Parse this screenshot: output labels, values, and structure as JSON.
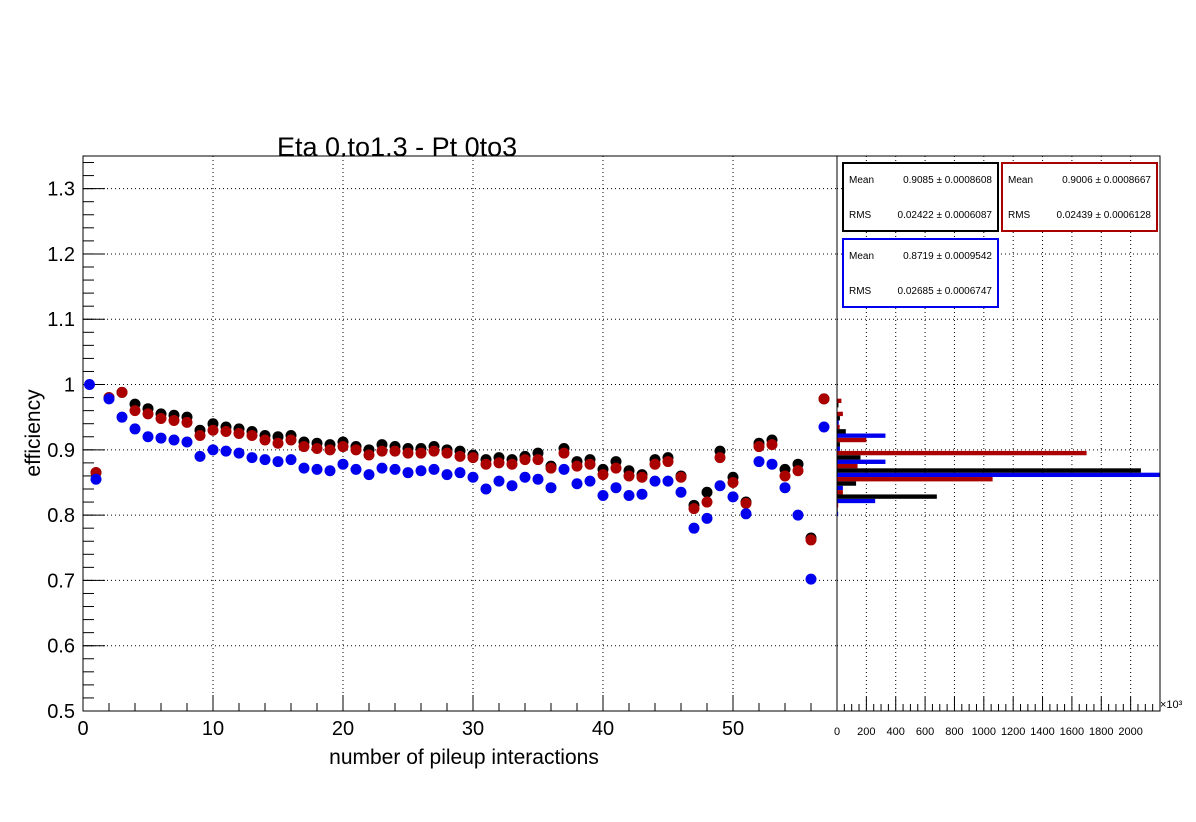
{
  "chart_data": [
    {
      "type": "scatter",
      "title": "Eta 0.to1.3 - Pt 0to3",
      "xlabel": "number of pileup interactions",
      "ylabel": "efficiency",
      "xlim": [
        0,
        58
      ],
      "ylim": [
        0.5,
        1.35
      ],
      "x_ticks": [
        0,
        10,
        20,
        30,
        40,
        50
      ],
      "y_ticks": [
        0.5,
        0.6,
        0.7,
        0.8,
        0.9,
        1.0,
        1.1,
        1.2,
        1.3
      ],
      "x_tick_labels": [
        "0",
        "10",
        "20",
        "30",
        "40",
        "50"
      ],
      "y_tick_labels": [
        "0.5",
        "0.6",
        "0.7",
        "0.8",
        "0.9",
        "1",
        "1.1",
        "1.2",
        "1.3"
      ],
      "grid": true,
      "series": [
        {
          "color": "#000000",
          "x": [
            1,
            2,
            3,
            4,
            5,
            6,
            7,
            8,
            9,
            10,
            11,
            12,
            13,
            14,
            15,
            16,
            17,
            18,
            19,
            20,
            21,
            22,
            23,
            24,
            25,
            26,
            27,
            28,
            29,
            30,
            31,
            32,
            33,
            34,
            35,
            36,
            37,
            38,
            39,
            40,
            41,
            42,
            43,
            44,
            45,
            46,
            47,
            48,
            49,
            50,
            51,
            52,
            53,
            54,
            55,
            56,
            57
          ],
          "values": [
            0.865,
            0.98,
            0.988,
            0.97,
            0.963,
            0.955,
            0.953,
            0.95,
            0.93,
            0.94,
            0.935,
            0.932,
            0.928,
            0.922,
            0.92,
            0.922,
            0.912,
            0.91,
            0.908,
            0.912,
            0.905,
            0.9,
            0.908,
            0.905,
            0.902,
            0.902,
            0.905,
            0.9,
            0.898,
            0.892,
            0.885,
            0.888,
            0.885,
            0.89,
            0.895,
            0.875,
            0.902,
            0.882,
            0.885,
            0.87,
            0.882,
            0.868,
            0.862,
            0.885,
            0.888,
            0.86,
            0.815,
            0.835,
            0.898,
            0.858,
            0.82,
            0.91,
            0.915,
            0.87,
            0.878,
            0.765,
            0.978
          ]
        },
        {
          "color": "#aa0000",
          "x": [
            1,
            2,
            3,
            4,
            5,
            6,
            7,
            8,
            9,
            10,
            11,
            12,
            13,
            14,
            15,
            16,
            17,
            18,
            19,
            20,
            21,
            22,
            23,
            24,
            25,
            26,
            27,
            28,
            29,
            30,
            31,
            32,
            33,
            34,
            35,
            36,
            37,
            38,
            39,
            40,
            41,
            42,
            43,
            44,
            45,
            46,
            47,
            48,
            49,
            50,
            51,
            52,
            53,
            54,
            55,
            56,
            57
          ],
          "values": [
            0.865,
            0.98,
            0.988,
            0.96,
            0.955,
            0.948,
            0.945,
            0.942,
            0.922,
            0.93,
            0.928,
            0.925,
            0.922,
            0.915,
            0.91,
            0.915,
            0.905,
            0.902,
            0.9,
            0.905,
            0.9,
            0.892,
            0.898,
            0.898,
            0.895,
            0.895,
            0.898,
            0.895,
            0.89,
            0.888,
            0.878,
            0.88,
            0.878,
            0.885,
            0.885,
            0.872,
            0.895,
            0.875,
            0.878,
            0.862,
            0.872,
            0.86,
            0.858,
            0.878,
            0.882,
            0.858,
            0.81,
            0.82,
            0.888,
            0.85,
            0.818,
            0.905,
            0.908,
            0.86,
            0.868,
            0.762,
            0.978
          ]
        },
        {
          "color": "#0000ee",
          "x": [
            0.5,
            1,
            2,
            3,
            4,
            5,
            6,
            7,
            8,
            9,
            10,
            11,
            12,
            13,
            14,
            15,
            16,
            17,
            18,
            19,
            20,
            21,
            22,
            23,
            24,
            25,
            26,
            27,
            28,
            29,
            30,
            31,
            32,
            33,
            34,
            35,
            36,
            37,
            38,
            39,
            40,
            41,
            42,
            43,
            44,
            45,
            46,
            47,
            48,
            49,
            50,
            51,
            52,
            53,
            54,
            55,
            56,
            57
          ],
          "values": [
            1.0,
            0.855,
            0.978,
            0.95,
            0.932,
            0.92,
            0.918,
            0.915,
            0.912,
            0.89,
            0.9,
            0.898,
            0.895,
            0.888,
            0.885,
            0.882,
            0.885,
            0.872,
            0.87,
            0.868,
            0.878,
            0.87,
            0.862,
            0.872,
            0.87,
            0.865,
            0.868,
            0.87,
            0.862,
            0.865,
            0.858,
            0.84,
            0.852,
            0.845,
            0.858,
            0.855,
            0.842,
            0.87,
            0.848,
            0.852,
            0.83,
            0.842,
            0.83,
            0.832,
            0.852,
            0.852,
            0.835,
            0.78,
            0.795,
            0.845,
            0.828,
            0.802,
            0.882,
            0.878,
            0.842,
            0.8,
            0.702,
            0.935
          ]
        }
      ]
    },
    {
      "type": "bar",
      "orientation": "horizontal",
      "ylim": [
        0.5,
        1.35
      ],
      "xlim": [
        0,
        2200
      ],
      "x_ticks": [
        0,
        200,
        400,
        600,
        800,
        1000,
        1200,
        1400,
        1600,
        1800,
        2000
      ],
      "x_tick_labels": [
        "0",
        "200",
        "400",
        "600",
        "800",
        "1000",
        "1200",
        "1400",
        "1600",
        "1800",
        "2000"
      ],
      "x_multiplier": "×10³",
      "grid": true,
      "bin_centers": [
        0.755,
        0.775,
        0.795,
        0.815,
        0.835,
        0.855,
        0.875,
        0.895,
        0.915,
        0.935,
        0.955,
        0.975
      ],
      "series": [
        {
          "color": "#0000ee",
          "values": [
            2,
            3,
            8,
            260,
            40,
            2200,
            330,
            20,
            330,
            12,
            2,
            1
          ]
        },
        {
          "color": "#aa0000",
          "values": [
            1,
            1,
            2,
            8,
            40,
            1060,
            140,
            1700,
            200,
            18,
            40,
            30
          ]
        },
        {
          "color": "#000000",
          "values": [
            1,
            1,
            2,
            5,
            680,
            130,
            2070,
            160,
            20,
            60,
            20,
            10
          ]
        }
      ],
      "stats": [
        {
          "color": "#000000",
          "mean_label": "Mean",
          "mean_value": "0.9085 ± 0.0008608",
          "rms_label": "RMS",
          "rms_value": "0.02422 ± 0.0006087"
        },
        {
          "color": "#aa0000",
          "mean_label": "Mean",
          "mean_value": "0.9006 ± 0.0008667",
          "rms_label": "RMS",
          "rms_value": "0.02439 ± 0.0006128"
        },
        {
          "color": "#0000ee",
          "mean_label": "Mean",
          "mean_value": "0.8719 ± 0.0009542",
          "rms_label": "RMS",
          "rms_value": "0.02685 ± 0.0006747"
        }
      ]
    }
  ]
}
